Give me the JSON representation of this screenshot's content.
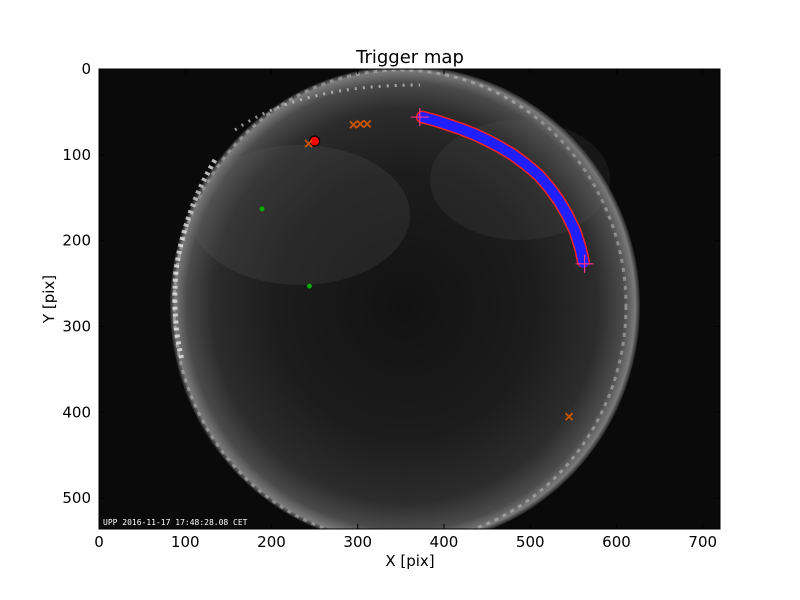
{
  "chart_data": {
    "type": "scatter",
    "title": "Trigger map",
    "xlabel": "X [pix]",
    "ylabel": "Y [pix]",
    "xlim": [
      0,
      720
    ],
    "ylim": [
      0,
      536
    ],
    "y_inverted": true,
    "grid": false,
    "xticks": [
      0,
      100,
      200,
      300,
      400,
      500,
      600,
      700
    ],
    "yticks": [
      0,
      100,
      200,
      300,
      400,
      500
    ],
    "background": "all-sky camera image (dark fisheye frame)",
    "timestamp_text": "UPP 2016-11-17 17:48:28.08 CET",
    "colors": {
      "track": "#1f1fff",
      "track_edge": "#ff2020",
      "marker_red": "#ff0000",
      "marker_orange": "#cc5500",
      "marker_green": "#00aa00",
      "marker_magenta": "#ff3388"
    },
    "series": [
      {
        "marker": "blue-track",
        "points": [
          [
            375,
            56
          ],
          [
            390,
            60
          ],
          [
            405,
            65
          ],
          [
            420,
            70
          ],
          [
            435,
            76
          ],
          [
            450,
            83
          ],
          [
            465,
            91
          ],
          [
            480,
            100
          ],
          [
            495,
            111
          ],
          [
            510,
            124
          ],
          [
            522,
            138
          ],
          [
            533,
            153
          ],
          [
            543,
            170
          ],
          [
            552,
            189
          ],
          [
            558,
            208
          ],
          [
            562,
            226
          ]
        ]
      },
      {
        "marker": "red-circle",
        "points": [
          [
            250,
            84
          ]
        ]
      },
      {
        "marker": "orange-x",
        "points": [
          [
            243,
            87
          ],
          [
            295,
            65
          ],
          [
            303,
            64
          ],
          [
            311,
            64
          ],
          [
            545,
            405
          ]
        ]
      },
      {
        "marker": "green-dot",
        "points": [
          [
            189,
            163
          ],
          [
            244,
            253
          ]
        ]
      },
      {
        "marker": "plus",
        "points": [
          [
            372,
            56
          ],
          [
            563,
            227
          ]
        ]
      }
    ]
  }
}
